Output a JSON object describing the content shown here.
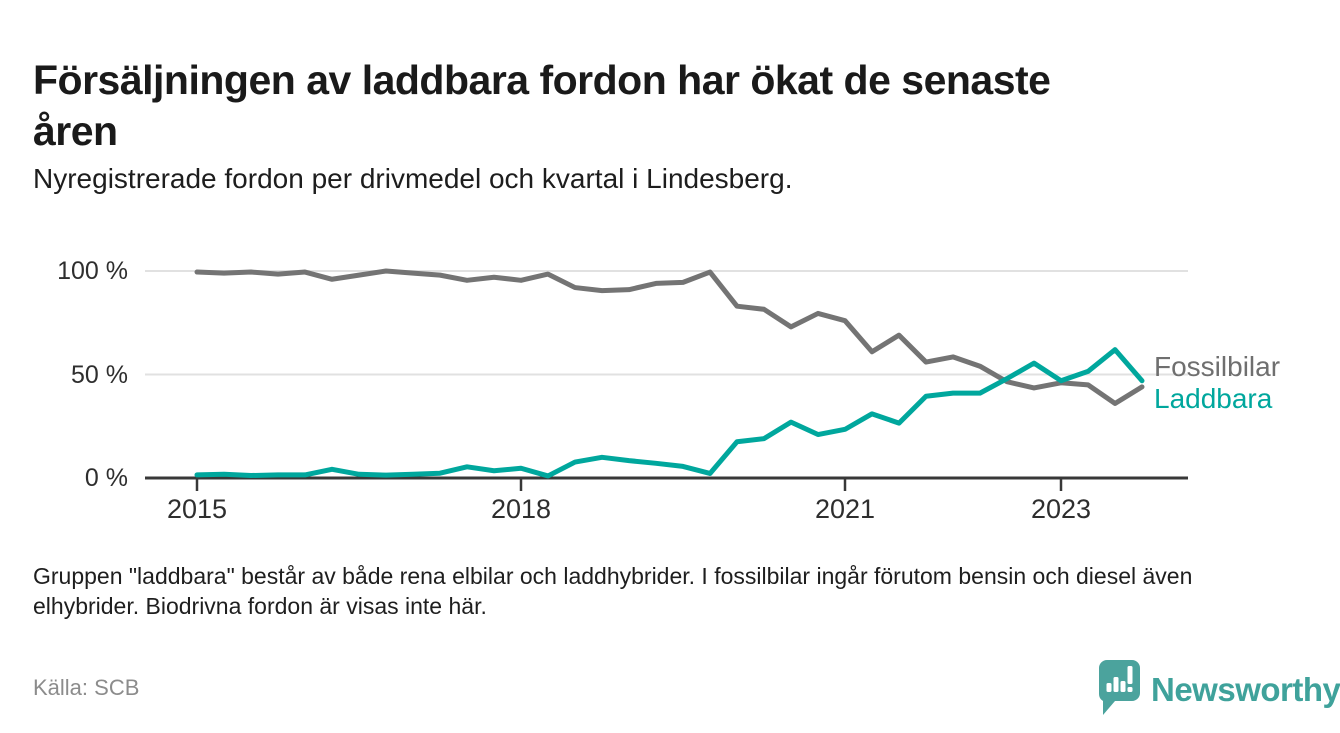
{
  "header": {
    "title": "Försäljningen av laddbara fordon har ökat de senaste åren",
    "subtitle": "Nyregistrerade fordon per drivmedel och kvartal i Lindesberg."
  },
  "chart_data": {
    "type": "line",
    "title": "Försäljningen av laddbara fordon har ökat de senaste åren",
    "subtitle": "Nyregistrerade fordon per drivmedel och kvartal i Lindesberg.",
    "unit": "%",
    "ylim": [
      0,
      100
    ],
    "grid": "horizontal",
    "legend_position": "right-of-line-ends",
    "x_quarters": [
      "2015K1",
      "2015K2",
      "2015K3",
      "2015K4",
      "2016K1",
      "2016K2",
      "2016K3",
      "2016K4",
      "2017K1",
      "2017K2",
      "2017K3",
      "2017K4",
      "2018K1",
      "2018K2",
      "2018K3",
      "2018K4",
      "2019K1",
      "2019K2",
      "2019K3",
      "2019K4",
      "2020K1",
      "2020K2",
      "2020K3",
      "2020K4",
      "2021K1",
      "2021K2",
      "2021K3",
      "2021K4",
      "2022K1",
      "2022K2",
      "2022K3",
      "2022K4",
      "2023K1",
      "2023K2",
      "2023K3",
      "2023K4"
    ],
    "series": [
      {
        "name": "Fossilbilar",
        "color": "#747474",
        "values": [
          99.5,
          99,
          99.5,
          98.5,
          99.5,
          96,
          98,
          100,
          99,
          98,
          95.5,
          97,
          95.5,
          98.5,
          92,
          90.5,
          91,
          94,
          94.5,
          99.5,
          83,
          81.5,
          73,
          79.5,
          76,
          61,
          69,
          56,
          58.5,
          54,
          46.5,
          43.5,
          46,
          45,
          36,
          44
        ]
      },
      {
        "name": "Laddbara",
        "color": "#00a79d",
        "values": [
          1.5,
          1.8,
          1.2,
          1.5,
          1.5,
          4.2,
          1.8,
          1.4,
          1.8,
          2.3,
          5.4,
          3.5,
          4.7,
          1,
          7.7,
          10,
          8.4,
          7.1,
          5.6,
          2.2,
          17.5,
          19,
          27,
          21,
          23.5,
          31,
          26.5,
          39.5,
          41,
          41,
          48,
          55.5,
          47,
          51.5,
          62,
          47
        ]
      }
    ],
    "yticks": [
      {
        "label": "0 %",
        "value": 0
      },
      {
        "label": "50 %",
        "value": 50
      },
      {
        "label": "100 %",
        "value": 100
      }
    ],
    "xticks": [
      {
        "label": "2015",
        "index": 0
      },
      {
        "label": "2018",
        "index": 12
      },
      {
        "label": "2021",
        "index": 24
      },
      {
        "label": "2023",
        "index": 32
      }
    ]
  },
  "footnote": "Gruppen \"laddbara\" består av både rena elbilar och laddhybrider. I fossilbilar ingår förutom bensin och diesel även elhybrider. Biodrivna fordon är visas inte här.",
  "source": "Källa: SCB",
  "branding": {
    "logo_text": "Newsworthy",
    "logo_icon": "newsworthy-pin-bar-chart",
    "brand_color": "#3fa29b"
  }
}
